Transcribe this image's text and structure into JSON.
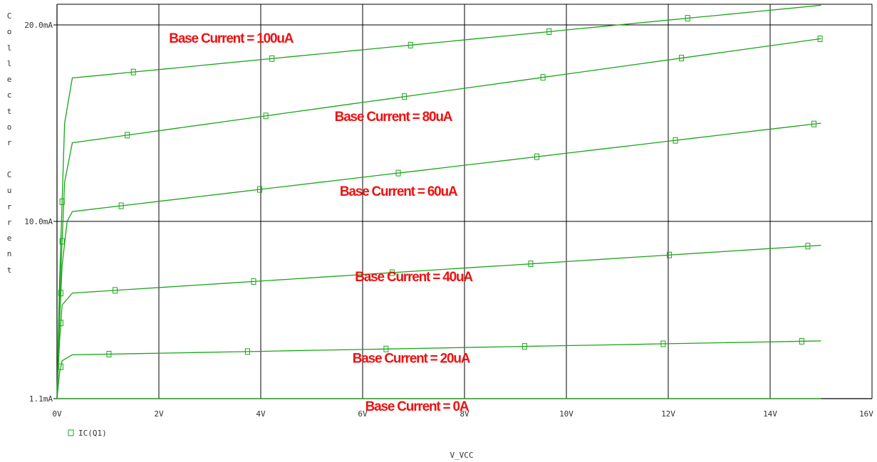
{
  "chart_data": {
    "type": "line",
    "xlabel": "V_VCC",
    "ylabel": "Collector Current",
    "xlim": [
      0,
      16
    ],
    "ylim": [
      1.1,
      21
    ],
    "x_ticks": [
      0,
      2,
      4,
      6,
      8,
      10,
      12,
      14,
      16
    ],
    "x_tick_labels": [
      "0V",
      "2V",
      "4V",
      "6V",
      "8V",
      "10V",
      "12V",
      "14V",
      "16V"
    ],
    "y_ticks": [
      1.1,
      10,
      20
    ],
    "y_tick_labels": [
      "1.1mA",
      "10.0mA",
      "20.0mA"
    ],
    "grid": true,
    "legend": {
      "position": "bottom-left",
      "label": "IC(Q1)"
    },
    "line_color": "#1aa51a",
    "annotation_color": "#ee1111",
    "series": [
      {
        "name": "Base Current = 0A",
        "x": [
          0,
          15
        ],
        "y": [
          1.1,
          1.1
        ]
      },
      {
        "name": "Base Current = 20uA",
        "x": [
          0,
          0.05,
          0.1,
          0.3,
          15
        ],
        "y": [
          1.1,
          2.4,
          3.0,
          3.3,
          4.0
        ]
      },
      {
        "name": "Base Current = 40uA",
        "x": [
          0,
          0.05,
          0.1,
          0.3,
          15
        ],
        "y": [
          1.1,
          4.0,
          5.8,
          6.4,
          8.8
        ]
      },
      {
        "name": "Base Current = 60uA",
        "x": [
          0,
          0.05,
          0.1,
          0.2,
          0.3,
          15
        ],
        "y": [
          1.1,
          5.0,
          7.8,
          10.0,
          10.5,
          15.0
        ]
      },
      {
        "name": "Base Current = 80uA",
        "x": [
          0,
          0.05,
          0.15,
          0.3,
          15
        ],
        "y": [
          1.1,
          6.0,
          12.0,
          14.0,
          19.3
        ]
      },
      {
        "name": "Base Current = 100uA",
        "x": [
          0,
          0.05,
          0.15,
          0.3,
          15
        ],
        "y": [
          1.1,
          7.0,
          15.0,
          17.3,
          21.0
        ]
      }
    ],
    "annotations": [
      {
        "text": "Base Current = 100uA",
        "x": 2.2,
        "y": 19.1
      },
      {
        "text": "Base Current = 80uA",
        "x": 5.45,
        "y": 15.1
      },
      {
        "text": "Base Current = 60uA",
        "x": 5.55,
        "y": 11.3
      },
      {
        "text": "Base Current = 40uA",
        "x": 5.85,
        "y": 7.0
      },
      {
        "text": "Base Current = 20uA",
        "x": 5.8,
        "y": 2.9
      },
      {
        "text": "Base Current = 0A",
        "x": 6.05,
        "y": 0.5
      }
    ]
  }
}
